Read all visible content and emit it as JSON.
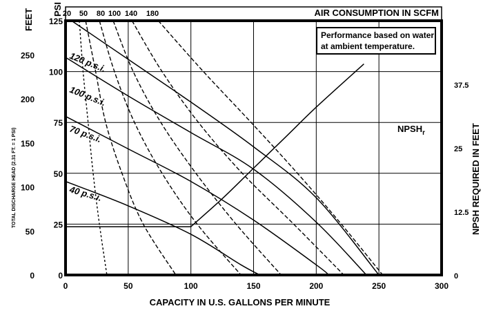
{
  "chart_data": {
    "type": "line",
    "title": "",
    "xlabel": "CAPACITY IN U.S. GALLONS PER MINUTE",
    "xlim": [
      0,
      300
    ],
    "xticks": [
      0,
      50,
      100,
      150,
      200,
      250,
      300
    ],
    "ylabel_psi": "PSI",
    "ylim_psi": [
      0,
      125
    ],
    "yticks_psi": [
      0,
      25,
      50,
      75,
      100,
      125
    ],
    "ylabel_feet": "FEET",
    "yticks_feet": [
      0,
      50,
      100,
      150,
      200,
      250
    ],
    "ylabel_feet_note": "TOTAL DISCHARGE HEAD (2.31 FT. = 1 PSI)",
    "ylabel_right": "NPSH REQUIRED IN FEET",
    "ylim_right": [
      0,
      50
    ],
    "yticks_right": [
      "0",
      "12.5",
      "25",
      "37.5"
    ],
    "top_axis_label": "AIR CONSUMPTION IN SCFM",
    "top_ticks": [
      "20",
      "50",
      "80",
      "100",
      "140",
      "180"
    ],
    "note": [
      "Performance based on water",
      "at ambient temperature."
    ],
    "npsh_label": "NPSH",
    "npsh_sub": "r",
    "grid": true,
    "pressure_series": [
      {
        "name": "120 p.s.i.",
        "x": [
          0,
          50,
          100,
          150,
          200,
          250
        ],
        "y": [
          127,
          106,
          85,
          63,
          38,
          0
        ]
      },
      {
        "name": "100 p.s.i.",
        "x": [
          0,
          50,
          100,
          150,
          200,
          240
        ],
        "y": [
          107,
          88,
          70,
          52,
          26,
          0
        ]
      },
      {
        "name": "70 p.s.i.",
        "x": [
          0,
          50,
          100,
          150,
          200,
          210
        ],
        "y": [
          78,
          62,
          46,
          27,
          5,
          0
        ]
      },
      {
        "name": "40 p.s.i.",
        "x": [
          0,
          50,
          100,
          140,
          155
        ],
        "y": [
          46,
          34,
          20,
          5,
          0
        ]
      }
    ],
    "air_series": [
      {
        "name": "20",
        "x": [
          11,
          14,
          18,
          22,
          27,
          33
        ],
        "y": [
          125,
          100,
          75,
          50,
          25,
          0
        ]
      },
      {
        "name": "50",
        "x": [
          16,
          24,
          32,
          45,
          62,
          88
        ],
        "y": [
          125,
          100,
          75,
          50,
          25,
          0
        ]
      },
      {
        "name": "80",
        "x": [
          27,
          39,
          55,
          77,
          105,
          140
        ],
        "y": [
          125,
          100,
          75,
          50,
          25,
          0
        ]
      },
      {
        "name": "100",
        "x": [
          38,
          54,
          76,
          104,
          136,
          172
        ],
        "y": [
          125,
          100,
          75,
          50,
          25,
          0
        ]
      },
      {
        "name": "140",
        "x": [
          53,
          77,
          106,
          141,
          182,
          222
        ],
        "y": [
          125,
          100,
          75,
          50,
          25,
          0
        ]
      },
      {
        "name": "180",
        "x": [
          74,
          110,
          148,
          185,
          220,
          253
        ],
        "y": [
          125,
          100,
          75,
          50,
          25,
          0
        ]
      }
    ],
    "npsh_series": {
      "name": "NPSHr",
      "x": [
        0,
        100,
        125,
        150,
        175,
        200,
        238
      ],
      "y": [
        9.5,
        9.5,
        15,
        21,
        27,
        33,
        41.5
      ]
    }
  }
}
